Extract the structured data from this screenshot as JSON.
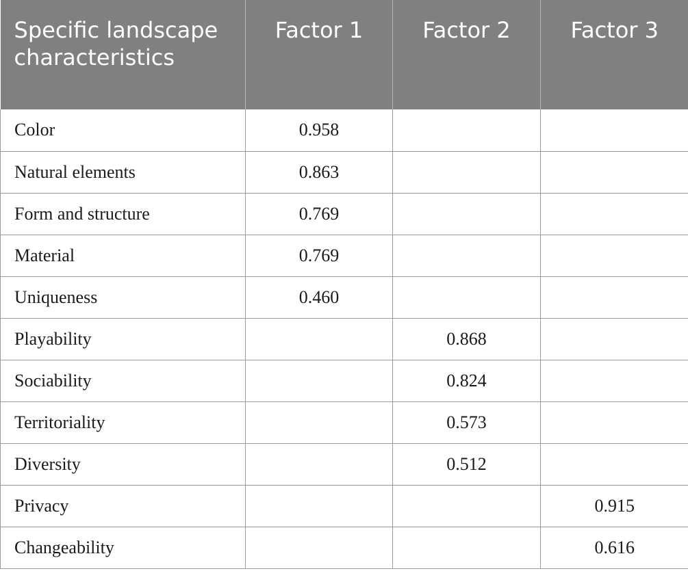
{
  "table": {
    "headers": [
      "Specific landscape characteristics",
      "Factor 1",
      "Factor 2",
      "Factor 3"
    ],
    "rows": [
      {
        "label": "Color",
        "f1": "0.958",
        "f2": "",
        "f3": ""
      },
      {
        "label": "Natural elements",
        "f1": "0.863",
        "f2": "",
        "f3": ""
      },
      {
        "label": "Form and structure",
        "f1": "0.769",
        "f2": "",
        "f3": ""
      },
      {
        "label": "Material",
        "f1": "0.769",
        "f2": "",
        "f3": ""
      },
      {
        "label": "Uniqueness",
        "f1": "0.460",
        "f2": "",
        "f3": ""
      },
      {
        "label": "Playability",
        "f1": "",
        "f2": "0.868",
        "f3": ""
      },
      {
        "label": "Sociability",
        "f1": "",
        "f2": "0.824",
        "f3": ""
      },
      {
        "label": "Territoriality",
        "f1": "",
        "f2": "0.573",
        "f3": ""
      },
      {
        "label": "Diversity",
        "f1": "",
        "f2": "0.512",
        "f3": ""
      },
      {
        "label": "Privacy",
        "f1": "",
        "f2": "",
        "f3": "0.915"
      },
      {
        "label": "Changeability",
        "f1": "",
        "f2": "",
        "f3": "0.616"
      }
    ]
  },
  "colors": {
    "header_background": "#808080",
    "header_text": "#ffffff",
    "grid_line": "#9a9a9a"
  }
}
